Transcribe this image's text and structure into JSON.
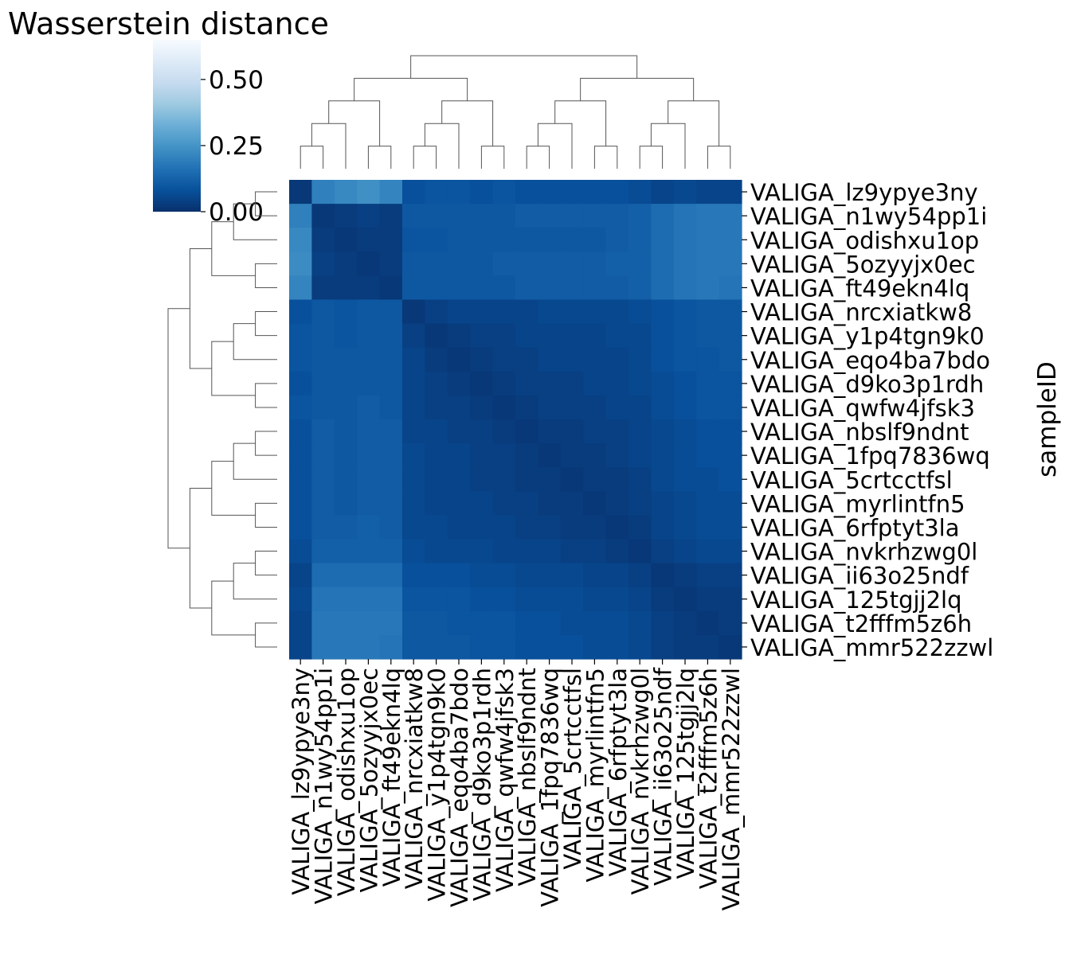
{
  "chart_data": {
    "type": "heatmap",
    "title": "Wasserstein distance",
    "ylabel": "sampleID",
    "xlabel": "",
    "colorbar": {
      "colormap": "Blues_r",
      "range": [
        0,
        0.65
      ],
      "ticks": [
        0,
        0.25,
        0.5
      ],
      "tick_labels": [
        "0.00",
        "0.25",
        "0.50"
      ]
    },
    "row_labels": [
      "VALIGA_lz9ypye3ny",
      "VALIGA_n1wy54pp1i",
      "VALIGA_odishxu1op",
      "VALIGA_5ozyyjx0ec",
      "VALIGA_ft49ekn4lq",
      "VALIGA_nrcxiatkw8",
      "VALIGA_y1p4tgn9k0",
      "VALIGA_eqo4ba7bdo",
      "VALIGA_d9ko3p1rdh",
      "VALIGA_qwfw4jfsk3",
      "VALIGA_nbslf9ndnt",
      "VALIGA_1fpq7836wq",
      "VALIGA_5crtcctfsl",
      "VALIGA_myrlintfn5",
      "VALIGA_6rfptyt3la",
      "VALIGA_nvkrhzwg0l",
      "VALIGA_ii63o25ndf",
      "VALIGA_125tgjj2lq",
      "VALIGA_t2fffm5z6h",
      "VALIGA_mmr522zzwl"
    ],
    "col_labels": [
      "VALIGA_lz9ypye3ny",
      "VALIGA_n1wy54pp1i",
      "VALIGA_odishxu1op",
      "VALIGA_5ozyyjx0ec",
      "VALIGA_ft49ekn4lq",
      "VALIGA_nrcxiatkw8",
      "VALIGA_y1p4tgn9k0",
      "VALIGA_eqo4ba7bdo",
      "VALIGA_d9ko3p1rdh",
      "VALIGA_qwfw4jfsk3",
      "VALIGA_nbslf9ndnt",
      "VALIGA_1fpq7836wq",
      "VALIGA_5crtcctfsl",
      "VALIGA_myrlintfn5",
      "VALIGA_6rfptyt3la",
      "VALIGA_nvkrhzwg0l",
      "VALIGA_ii63o25ndf",
      "VALIGA_125tgjj2lq",
      "VALIGA_t2fffm5z6h",
      "VALIGA_mmr522zzwl"
    ],
    "values": [
      [
        0.02,
        0.2,
        0.22,
        0.24,
        0.21,
        0.08,
        0.09,
        0.09,
        0.08,
        0.09,
        0.08,
        0.08,
        0.08,
        0.08,
        0.08,
        0.07,
        0.05,
        0.06,
        0.05,
        0.05
      ],
      [
        0.2,
        0.02,
        0.03,
        0.04,
        0.03,
        0.1,
        0.1,
        0.1,
        0.1,
        0.1,
        0.11,
        0.11,
        0.11,
        0.11,
        0.11,
        0.12,
        0.15,
        0.17,
        0.18,
        0.18
      ],
      [
        0.22,
        0.03,
        0.02,
        0.03,
        0.03,
        0.09,
        0.09,
        0.1,
        0.1,
        0.1,
        0.1,
        0.1,
        0.1,
        0.1,
        0.11,
        0.12,
        0.15,
        0.17,
        0.18,
        0.18
      ],
      [
        0.23,
        0.04,
        0.03,
        0.02,
        0.03,
        0.1,
        0.1,
        0.1,
        0.1,
        0.11,
        0.11,
        0.11,
        0.11,
        0.11,
        0.12,
        0.12,
        0.15,
        0.17,
        0.18,
        0.18
      ],
      [
        0.21,
        0.03,
        0.03,
        0.03,
        0.02,
        0.1,
        0.1,
        0.1,
        0.1,
        0.1,
        0.11,
        0.11,
        0.11,
        0.11,
        0.11,
        0.12,
        0.15,
        0.17,
        0.18,
        0.17
      ],
      [
        0.08,
        0.1,
        0.09,
        0.1,
        0.1,
        0.02,
        0.04,
        0.05,
        0.05,
        0.05,
        0.05,
        0.06,
        0.06,
        0.06,
        0.06,
        0.07,
        0.08,
        0.09,
        0.1,
        0.1
      ],
      [
        0.09,
        0.1,
        0.09,
        0.1,
        0.1,
        0.04,
        0.02,
        0.03,
        0.04,
        0.04,
        0.05,
        0.05,
        0.05,
        0.05,
        0.06,
        0.06,
        0.08,
        0.09,
        0.1,
        0.1
      ],
      [
        0.09,
        0.1,
        0.1,
        0.1,
        0.1,
        0.05,
        0.03,
        0.02,
        0.03,
        0.04,
        0.04,
        0.05,
        0.05,
        0.05,
        0.05,
        0.06,
        0.08,
        0.09,
        0.09,
        0.1
      ],
      [
        0.08,
        0.1,
        0.1,
        0.1,
        0.1,
        0.05,
        0.04,
        0.03,
        0.02,
        0.03,
        0.04,
        0.04,
        0.04,
        0.05,
        0.05,
        0.06,
        0.07,
        0.08,
        0.09,
        0.09
      ],
      [
        0.09,
        0.1,
        0.1,
        0.11,
        0.1,
        0.05,
        0.04,
        0.04,
        0.03,
        0.02,
        0.03,
        0.04,
        0.04,
        0.04,
        0.05,
        0.05,
        0.07,
        0.08,
        0.09,
        0.09
      ],
      [
        0.08,
        0.11,
        0.1,
        0.11,
        0.11,
        0.05,
        0.05,
        0.04,
        0.04,
        0.03,
        0.02,
        0.03,
        0.03,
        0.04,
        0.04,
        0.05,
        0.06,
        0.07,
        0.08,
        0.08
      ],
      [
        0.08,
        0.11,
        0.1,
        0.11,
        0.11,
        0.06,
        0.05,
        0.05,
        0.04,
        0.04,
        0.03,
        0.02,
        0.03,
        0.03,
        0.04,
        0.05,
        0.06,
        0.07,
        0.08,
        0.08
      ],
      [
        0.08,
        0.11,
        0.1,
        0.11,
        0.11,
        0.06,
        0.05,
        0.05,
        0.04,
        0.04,
        0.03,
        0.03,
        0.02,
        0.03,
        0.03,
        0.04,
        0.06,
        0.07,
        0.07,
        0.08
      ],
      [
        0.08,
        0.11,
        0.1,
        0.11,
        0.11,
        0.06,
        0.05,
        0.05,
        0.05,
        0.04,
        0.04,
        0.03,
        0.03,
        0.02,
        0.03,
        0.04,
        0.05,
        0.06,
        0.07,
        0.07
      ],
      [
        0.08,
        0.11,
        0.11,
        0.12,
        0.11,
        0.06,
        0.06,
        0.05,
        0.05,
        0.05,
        0.04,
        0.04,
        0.03,
        0.03,
        0.02,
        0.03,
        0.05,
        0.06,
        0.07,
        0.07
      ],
      [
        0.07,
        0.12,
        0.12,
        0.12,
        0.12,
        0.07,
        0.06,
        0.06,
        0.06,
        0.05,
        0.05,
        0.05,
        0.04,
        0.04,
        0.03,
        0.02,
        0.04,
        0.05,
        0.06,
        0.06
      ],
      [
        0.05,
        0.15,
        0.15,
        0.15,
        0.15,
        0.08,
        0.08,
        0.08,
        0.07,
        0.07,
        0.06,
        0.06,
        0.06,
        0.05,
        0.05,
        0.04,
        0.02,
        0.03,
        0.04,
        0.04
      ],
      [
        0.06,
        0.17,
        0.17,
        0.17,
        0.17,
        0.09,
        0.09,
        0.09,
        0.08,
        0.08,
        0.07,
        0.07,
        0.07,
        0.06,
        0.06,
        0.05,
        0.03,
        0.02,
        0.03,
        0.03
      ],
      [
        0.05,
        0.18,
        0.18,
        0.18,
        0.18,
        0.1,
        0.1,
        0.09,
        0.09,
        0.09,
        0.08,
        0.08,
        0.07,
        0.07,
        0.07,
        0.06,
        0.04,
        0.03,
        0.02,
        0.03
      ],
      [
        0.05,
        0.18,
        0.18,
        0.18,
        0.17,
        0.1,
        0.1,
        0.1,
        0.09,
        0.09,
        0.08,
        0.08,
        0.08,
        0.07,
        0.07,
        0.06,
        0.04,
        0.03,
        0.03,
        0.02
      ]
    ]
  }
}
